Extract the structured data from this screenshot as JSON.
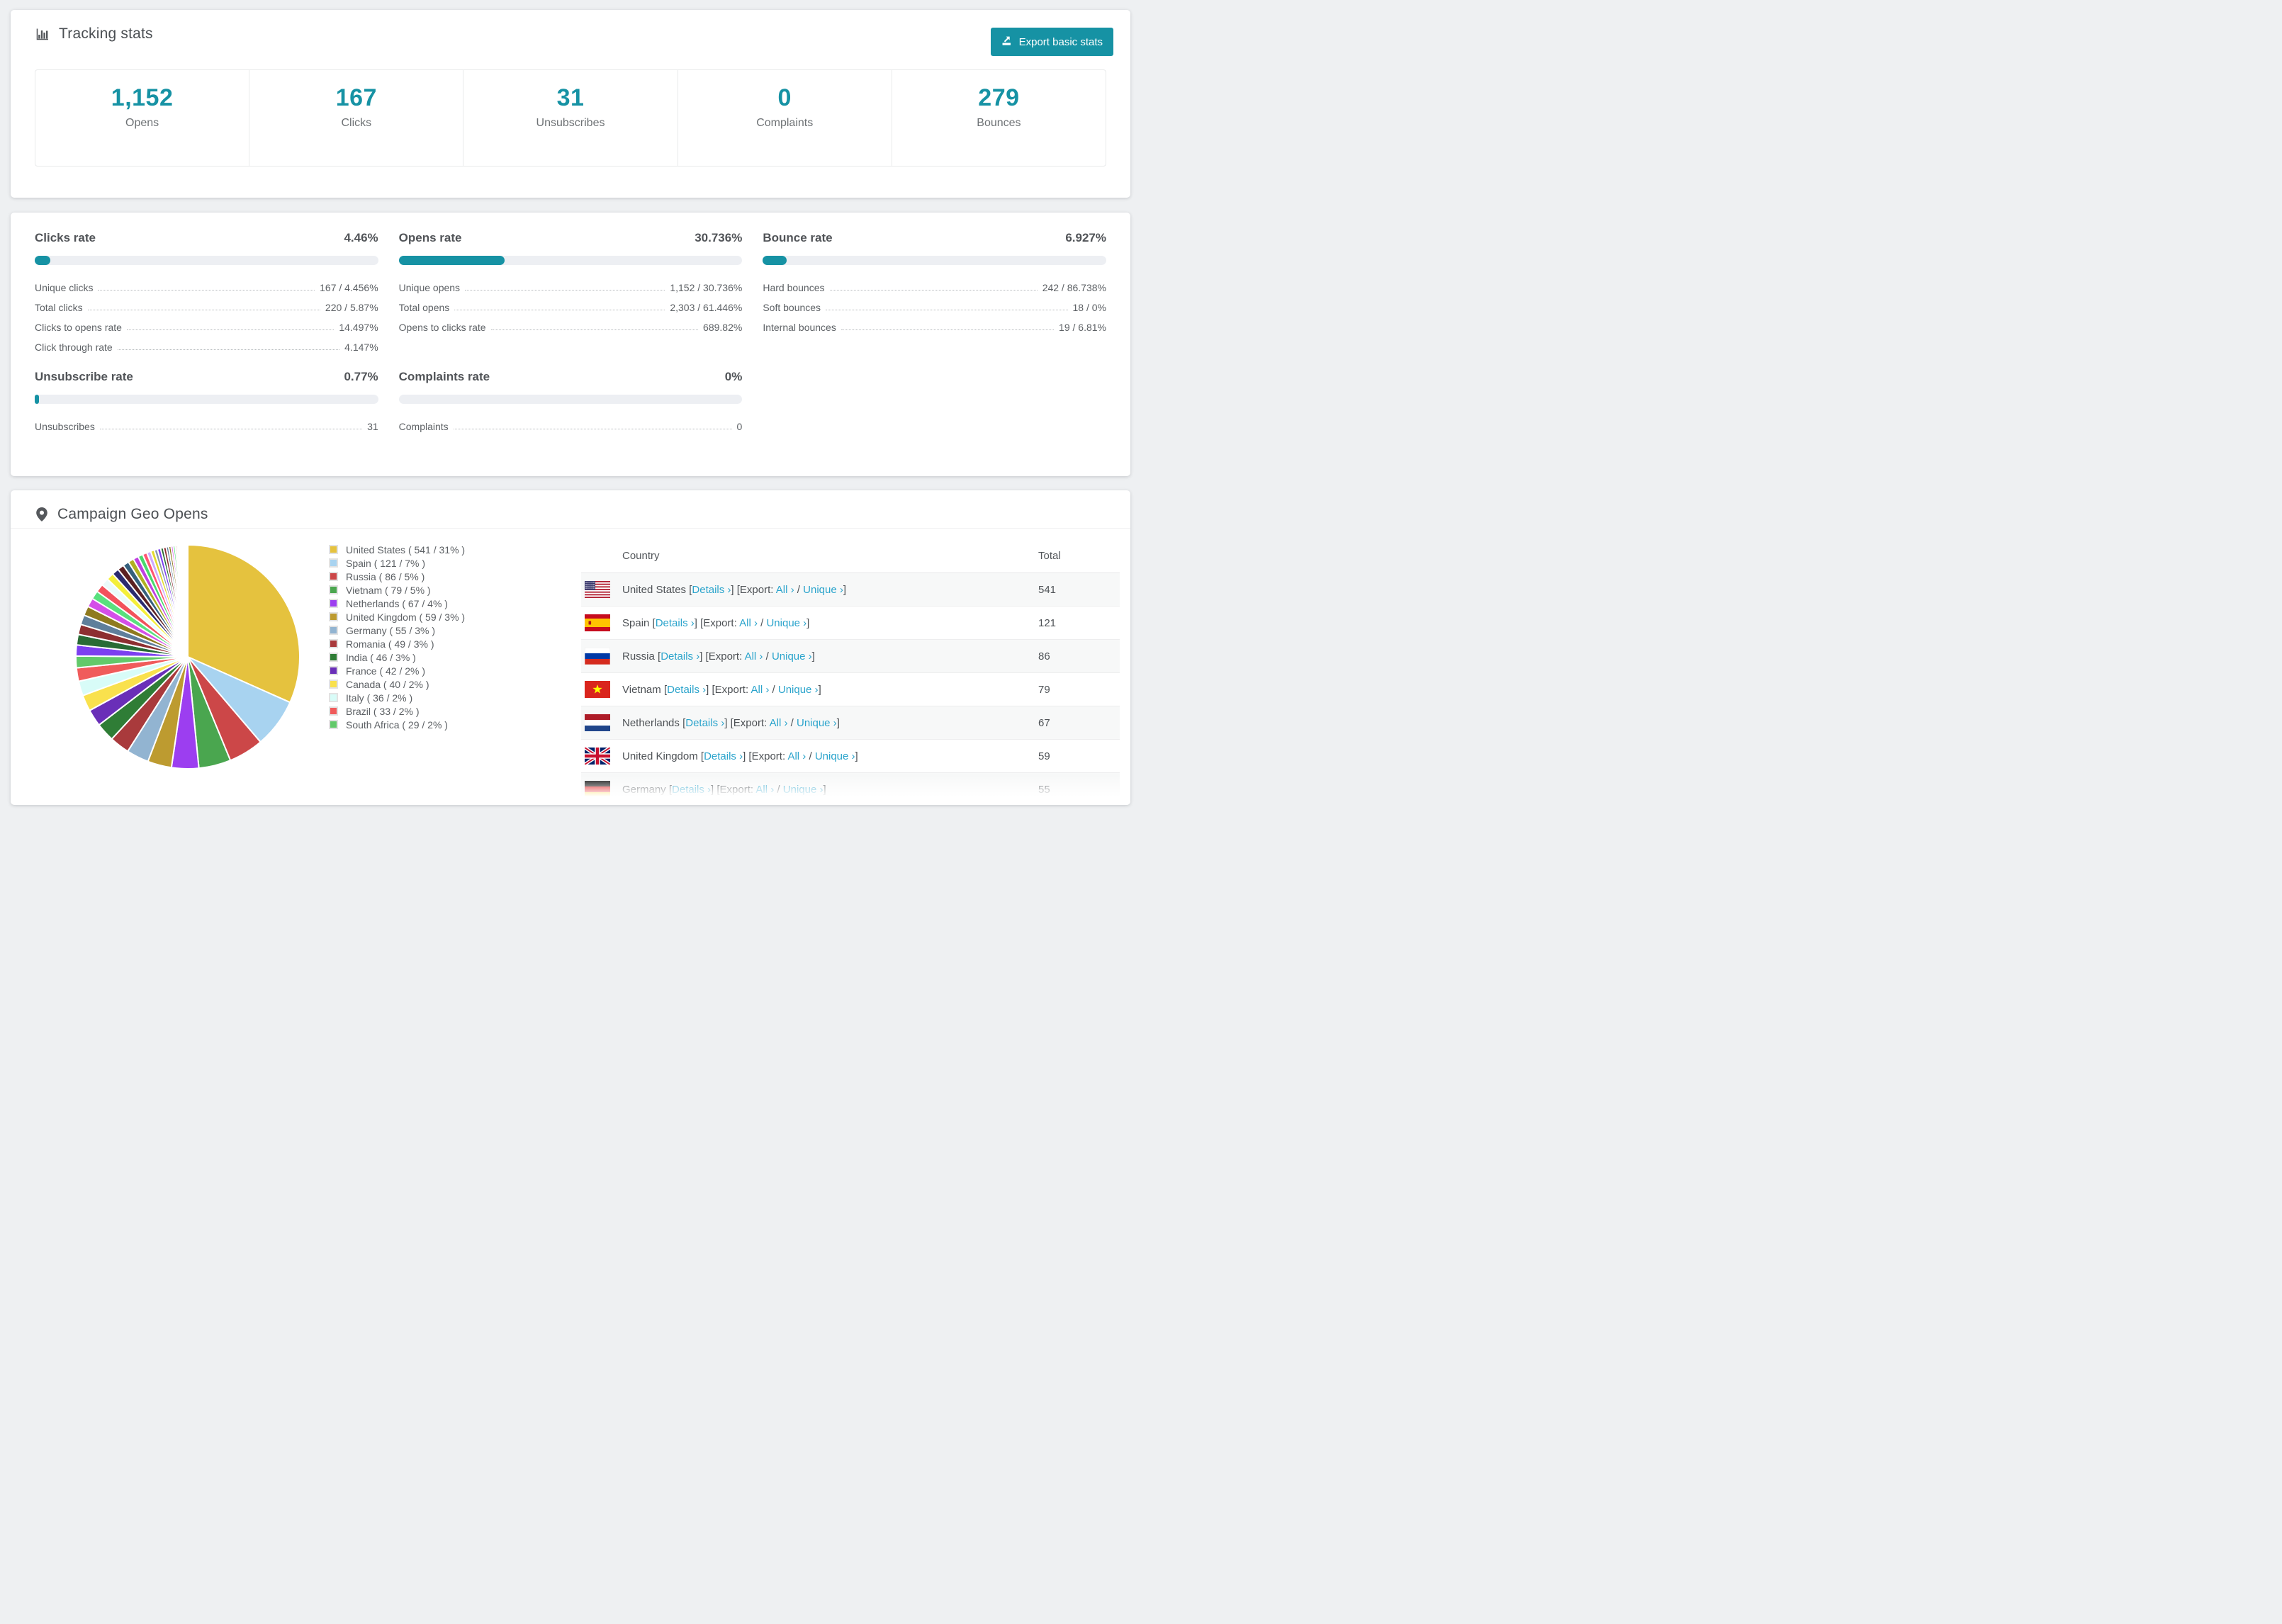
{
  "accent": "#1692a4",
  "link_color": "#2ba4cc",
  "tracking": {
    "title": "Tracking stats",
    "export_label": "Export basic stats",
    "cards": [
      {
        "value": "1,152",
        "label": "Opens"
      },
      {
        "value": "167",
        "label": "Clicks"
      },
      {
        "value": "31",
        "label": "Unsubscribes"
      },
      {
        "value": "0",
        "label": "Complaints"
      },
      {
        "value": "279",
        "label": "Bounces"
      }
    ]
  },
  "rates": [
    {
      "title": "Clicks rate",
      "value": "4.46%",
      "percent": 4.46,
      "rows": [
        {
          "label": "Unique clicks",
          "value": "167 / 4.456%"
        },
        {
          "label": "Total clicks",
          "value": "220 / 5.87%"
        },
        {
          "label": "Clicks to opens rate",
          "value": "14.497%"
        },
        {
          "label": "Click through rate",
          "value": "4.147%"
        }
      ]
    },
    {
      "title": "Opens rate",
      "value": "30.736%",
      "percent": 30.736,
      "rows": [
        {
          "label": "Unique opens",
          "value": "1,152 / 30.736%"
        },
        {
          "label": "Total opens",
          "value": "2,303 / 61.446%"
        },
        {
          "label": "Opens to clicks rate",
          "value": "689.82%"
        }
      ]
    },
    {
      "title": "Bounce rate",
      "value": "6.927%",
      "percent": 6.927,
      "rows": [
        {
          "label": "Hard bounces",
          "value": "242 / 86.738%"
        },
        {
          "label": "Soft bounces",
          "value": "18 / 0%"
        },
        {
          "label": "Internal bounces",
          "value": "19 / 6.81%"
        }
      ]
    },
    {
      "title": "Unsubscribe rate",
      "value": "0.77%",
      "percent": 0.77,
      "rows": [
        {
          "label": "Unsubscribes",
          "value": "31"
        }
      ]
    },
    {
      "title": "Complaints rate",
      "value": "0%",
      "percent": 0,
      "rows": [
        {
          "label": "Complaints",
          "value": "0"
        }
      ]
    }
  ],
  "geo": {
    "title": "Campaign Geo Opens",
    "table": {
      "headers": [
        "Country",
        "Total"
      ],
      "link_labels": {
        "details": "Details ›",
        "export_prefix": "[Export:",
        "all": "All ›",
        "unique": "Unique ›"
      },
      "rows": [
        {
          "country": "United States",
          "flag": "us",
          "total": "541"
        },
        {
          "country": "Spain",
          "flag": "es",
          "total": "121"
        },
        {
          "country": "Russia",
          "flag": "ru",
          "total": "86"
        },
        {
          "country": "Vietnam",
          "flag": "vn",
          "total": "79"
        },
        {
          "country": "Netherlands",
          "flag": "nl",
          "total": "67"
        },
        {
          "country": "United Kingdom",
          "flag": "gb",
          "total": "59"
        },
        {
          "country": "Germany",
          "flag": "de",
          "total": "55",
          "partial": true
        }
      ]
    }
  },
  "chart_data": {
    "type": "pie",
    "title": "Campaign Geo Opens",
    "legend_position": "right",
    "slices": [
      {
        "label": "United States",
        "value": 541,
        "percent": 31,
        "color": "#e5c23e"
      },
      {
        "label": "Spain",
        "value": 121,
        "percent": 7,
        "color": "#a8d3f0"
      },
      {
        "label": "Russia",
        "value": 86,
        "percent": 5,
        "color": "#cc4748"
      },
      {
        "label": "Vietnam",
        "value": 79,
        "percent": 5,
        "color": "#4aa64f"
      },
      {
        "label": "Netherlands",
        "value": 67,
        "percent": 4,
        "color": "#9c3ef0"
      },
      {
        "label": "United Kingdom",
        "value": 59,
        "percent": 3,
        "color": "#bd9b30"
      },
      {
        "label": "Germany",
        "value": 55,
        "percent": 3,
        "color": "#92b4d1"
      },
      {
        "label": "Romania",
        "value": 49,
        "percent": 3,
        "color": "#a93a3c"
      },
      {
        "label": "India",
        "value": 46,
        "percent": 3,
        "color": "#2f7d36"
      },
      {
        "label": "France",
        "value": 42,
        "percent": 2,
        "color": "#6a2fb8"
      },
      {
        "label": "Canada",
        "value": 40,
        "percent": 2,
        "color": "#f9e14d"
      },
      {
        "label": "Italy",
        "value": 36,
        "percent": 2,
        "color": "#d8fcf8"
      },
      {
        "label": "Brazil",
        "value": 33,
        "percent": 2,
        "color": "#f05b5b"
      },
      {
        "label": "South Africa",
        "value": 29,
        "percent": 2,
        "color": "#62c96a"
      }
    ],
    "other_slices_estimated": {
      "note": "many small unlabeled countries fanning to zero at 12 o'clock",
      "values": [
        27,
        26,
        25,
        24,
        23,
        22,
        21,
        20,
        19,
        18,
        17,
        16,
        15,
        14,
        13,
        12,
        11,
        10,
        9,
        8,
        8,
        7,
        7,
        6,
        6,
        5,
        5,
        4,
        4,
        3,
        3,
        3,
        2,
        2,
        2,
        2,
        1,
        1,
        1,
        1,
        1,
        1
      ],
      "palette": [
        "#7c3ff0",
        "#286b35",
        "#8d2f31",
        "#5f7f9b",
        "#8f7a1e",
        "#d44fe8",
        "#59e07e",
        "#f2525c",
        "#eafbfa",
        "#f4ef3a",
        "#2b2b6e",
        "#5c2022",
        "#35607d",
        "#b0b021",
        "#c03fe0",
        "#49d96d",
        "#ff5571",
        "#cdaaff",
        "#e3da2d",
        "#8899ab"
      ]
    }
  }
}
